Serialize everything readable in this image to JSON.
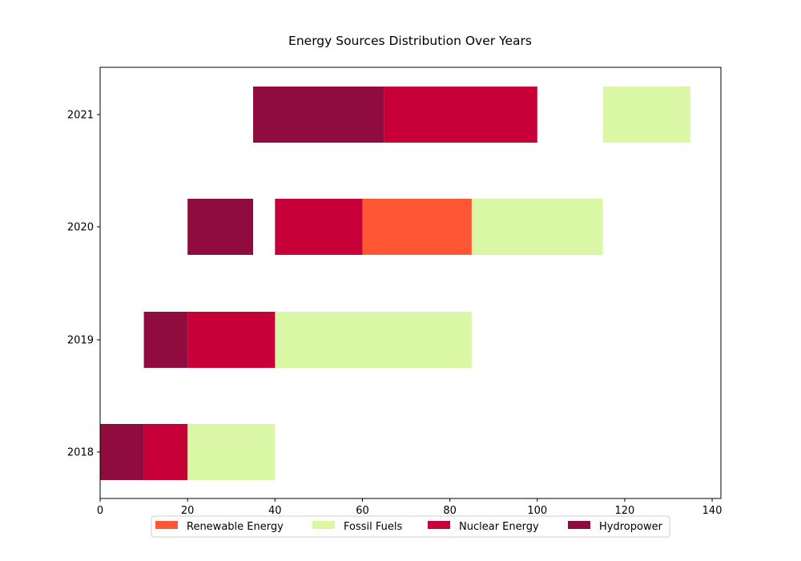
{
  "chart_data": {
    "type": "bar",
    "orientation": "horizontal",
    "title": "Energy Sources Distribution Over Years",
    "xlabel": "",
    "ylabel": "",
    "xlim": [
      0,
      142
    ],
    "x_ticks": [
      0,
      20,
      40,
      60,
      80,
      100,
      120,
      140
    ],
    "categories": [
      "2018",
      "2019",
      "2020",
      "2021"
    ],
    "grid": false,
    "legend_position": "bottom-center",
    "series": [
      {
        "name": "Renewable Energy",
        "color": "#ff5733",
        "segments": [
          null,
          null,
          [
            60,
            85
          ],
          null
        ]
      },
      {
        "name": "Fossil Fuels",
        "color": "#daf7a6",
        "segments": [
          [
            20,
            40
          ],
          [
            40,
            85
          ],
          [
            85,
            115
          ],
          [
            115,
            135
          ]
        ]
      },
      {
        "name": "Nuclear Energy",
        "color": "#c70039",
        "segments": [
          [
            10,
            20
          ],
          [
            20,
            40
          ],
          [
            40,
            60
          ],
          [
            65,
            100
          ]
        ]
      },
      {
        "name": "Hydropower",
        "color": "#900c3f",
        "segments": [
          [
            0,
            10
          ],
          [
            10,
            20
          ],
          [
            20,
            35
          ],
          [
            35,
            65
          ]
        ]
      }
    ]
  }
}
